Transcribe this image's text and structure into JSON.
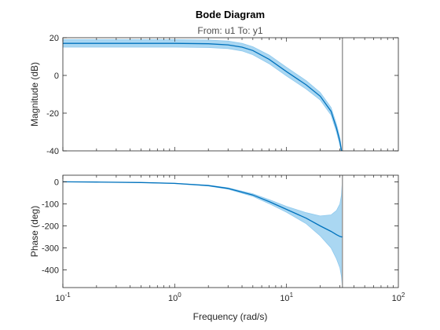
{
  "chart_data": {
    "type": "line",
    "title": "Bode Diagram",
    "subtitle": "From: u1  To: y1",
    "xlabel": "Frequency (rad/s)",
    "xscale": "log",
    "xlim": [
      0.1,
      100
    ],
    "xticks": [
      {
        "value": 0.1,
        "base": "10",
        "exp": "-1"
      },
      {
        "value": 1,
        "base": "10",
        "exp": "0"
      },
      {
        "value": 10,
        "base": "10",
        "exp": "1"
      },
      {
        "value": 100,
        "base": "10",
        "exp": "2"
      }
    ],
    "grid": false,
    "line_color": "#0072bd",
    "band_color": "#8ec9ee",
    "vline": {
      "x": 31.6,
      "color": "#999999"
    },
    "panels": [
      {
        "name": "magnitude",
        "ylabel": "Magnitude (dB)",
        "ylim": [
          -40,
          20
        ],
        "yticks": [
          20,
          0,
          -20,
          -40
        ],
        "series": {
          "x": [
            0.1,
            0.2,
            0.5,
            1,
            2,
            3,
            4,
            5,
            7,
            10,
            15,
            20,
            25,
            28,
            30,
            31,
            31.6
          ],
          "y": [
            17,
            17,
            17,
            17,
            16.8,
            16.2,
            15,
            13.2,
            8.5,
            2,
            -5,
            -11,
            -19,
            -28,
            -35,
            -40,
            -40
          ],
          "lower": [
            15,
            15,
            15,
            15,
            14.8,
            14.2,
            13,
            11,
            6.2,
            -0.3,
            -7.2,
            -13,
            -21,
            -30,
            -37,
            -41,
            -41
          ],
          "upper": [
            19,
            19,
            19,
            19,
            18.8,
            18.2,
            17,
            15.2,
            10.8,
            4.3,
            -2.8,
            -9,
            -17,
            -26,
            -33,
            -39,
            -39
          ]
        }
      },
      {
        "name": "phase",
        "ylabel": "Phase (deg)",
        "ylim": [
          -480,
          30
        ],
        "yticks": [
          0,
          -100,
          -200,
          -300,
          -400
        ],
        "series": {
          "x": [
            0.1,
            0.2,
            0.5,
            1,
            2,
            3,
            5,
            7,
            10,
            15,
            20,
            25,
            28,
            30,
            31,
            31.6
          ],
          "y": [
            0,
            -1,
            -3,
            -7,
            -17,
            -30,
            -60,
            -90,
            -125,
            -165,
            -200,
            -225,
            -240,
            -248,
            -250,
            -250
          ],
          "lower": [
            0,
            -1,
            -3,
            -8,
            -19,
            -33,
            -66,
            -99,
            -138,
            -190,
            -245,
            -300,
            -350,
            -390,
            -430,
            -480
          ],
          "upper": [
            0,
            -1,
            -3,
            -6,
            -15,
            -27,
            -54,
            -81,
            -112,
            -140,
            -155,
            -150,
            -130,
            -100,
            -60,
            10
          ]
        }
      }
    ]
  }
}
